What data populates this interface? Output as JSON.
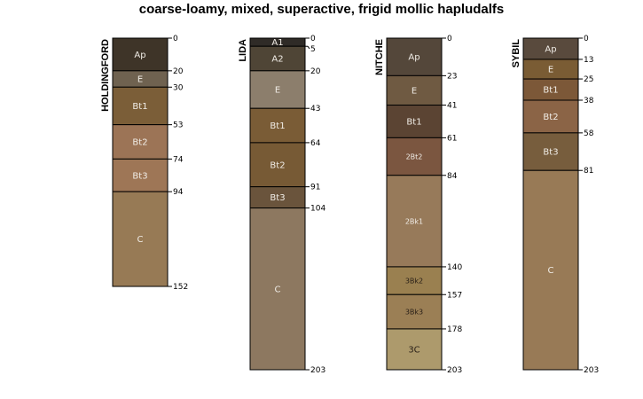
{
  "title": "coarse-loamy, mixed, superactive, frigid mollic hapludalfs",
  "profiles": [
    {
      "name": "HOLDINGFORD",
      "horizons": [
        {
          "name": "Ap",
          "top": 0,
          "bottom": 20,
          "color": "#3e3428"
        },
        {
          "name": "E",
          "top": 20,
          "bottom": 30,
          "color": "#6f6250"
        },
        {
          "name": "Bt1",
          "top": 30,
          "bottom": 53,
          "color": "#7b5e38"
        },
        {
          "name": "Bt2",
          "top": 53,
          "bottom": 74,
          "color": "#9c7456"
        },
        {
          "name": "Bt3",
          "top": 74,
          "bottom": 94,
          "color": "#9e7656"
        },
        {
          "name": "C",
          "top": 94,
          "bottom": 152,
          "color": "#977a55"
        }
      ]
    },
    {
      "name": "LIDA",
      "horizons": [
        {
          "name": "A1",
          "top": 0,
          "bottom": 5,
          "color": "#2f2b27"
        },
        {
          "name": "A2",
          "top": 5,
          "bottom": 20,
          "color": "#4f4536"
        },
        {
          "name": "E",
          "top": 20,
          "bottom": 43,
          "color": "#8c7e6c"
        },
        {
          "name": "Bt1",
          "top": 43,
          "bottom": 64,
          "color": "#7a5c36"
        },
        {
          "name": "Bt2",
          "top": 64,
          "bottom": 91,
          "color": "#775a35"
        },
        {
          "name": "Bt3",
          "top": 91,
          "bottom": 104,
          "color": "#6a543c"
        },
        {
          "name": "C",
          "top": 104,
          "bottom": 203,
          "color": "#8d7860"
        }
      ]
    },
    {
      "name": "NITCHE",
      "horizons": [
        {
          "name": "Ap",
          "top": 0,
          "bottom": 23,
          "color": "#54473a"
        },
        {
          "name": "E",
          "top": 23,
          "bottom": 41,
          "color": "#6f5a42"
        },
        {
          "name": "Bt1",
          "top": 41,
          "bottom": 61,
          "color": "#5b4433"
        },
        {
          "name": "2Bt2",
          "top": 61,
          "bottom": 84,
          "color": "#7b5640"
        },
        {
          "name": "2Bk1",
          "top": 84,
          "bottom": 140,
          "color": "#977a5a"
        },
        {
          "name": "3Bk2",
          "top": 140,
          "bottom": 157,
          "color": "#9a8050"
        },
        {
          "name": "3Bk3",
          "top": 157,
          "bottom": 178,
          "color": "#9b7f55"
        },
        {
          "name": "3C",
          "top": 178,
          "bottom": 203,
          "color": "#ad9a6c"
        }
      ]
    },
    {
      "name": "SYBIL",
      "horizons": [
        {
          "name": "Ap",
          "top": 0,
          "bottom": 13,
          "color": "#594a3d"
        },
        {
          "name": "E",
          "top": 13,
          "bottom": 25,
          "color": "#7a5c34"
        },
        {
          "name": "Bt1",
          "top": 25,
          "bottom": 38,
          "color": "#7c5838"
        },
        {
          "name": "Bt2",
          "top": 38,
          "bottom": 58,
          "color": "#8b6446"
        },
        {
          "name": "Bt3",
          "top": 58,
          "bottom": 81,
          "color": "#775d3d"
        },
        {
          "name": "C",
          "top": 81,
          "bottom": 203,
          "color": "#987a56"
        }
      ]
    }
  ]
}
